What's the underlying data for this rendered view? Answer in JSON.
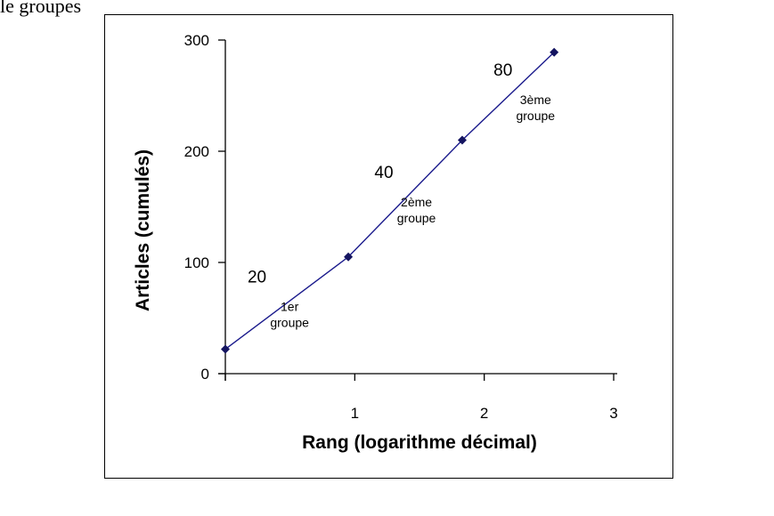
{
  "caption_text": "le groupes",
  "chart_data": {
    "type": "line",
    "title": "",
    "xlabel": "Rang (logarithme décimal)",
    "ylabel": "Articles (cumulés)",
    "xlim": [
      0,
      3
    ],
    "ylim": [
      0,
      300
    ],
    "x_ticks": [
      {
        "value": 1,
        "label": "1"
      },
      {
        "value": 2,
        "label": "2"
      },
      {
        "value": 3,
        "label": "3"
      }
    ],
    "y_ticks": [
      {
        "value": 0,
        "label": "0"
      },
      {
        "value": 100,
        "label": "100"
      },
      {
        "value": 200,
        "label": "200"
      },
      {
        "value": 300,
        "label": "300"
      }
    ],
    "grid": false,
    "series": [
      {
        "color": "#1a1a8c",
        "points": [
          {
            "x": 0.0,
            "y": 22
          },
          {
            "x": 0.95,
            "y": 105
          },
          {
            "x": 1.83,
            "y": 210
          },
          {
            "x": 2.54,
            "y": 289
          }
        ]
      }
    ],
    "annotations": [
      {
        "number": "20",
        "group_line1": "1er",
        "group_line2": "groupe",
        "x": 0.4,
        "y": 63
      },
      {
        "number": "40",
        "group_line1": "2ème",
        "group_line2": "groupe",
        "x": 1.38,
        "y": 157
      },
      {
        "number": "80",
        "group_line1": "3ème",
        "group_line2": "groupe",
        "x": 2.3,
        "y": 249
      }
    ]
  }
}
